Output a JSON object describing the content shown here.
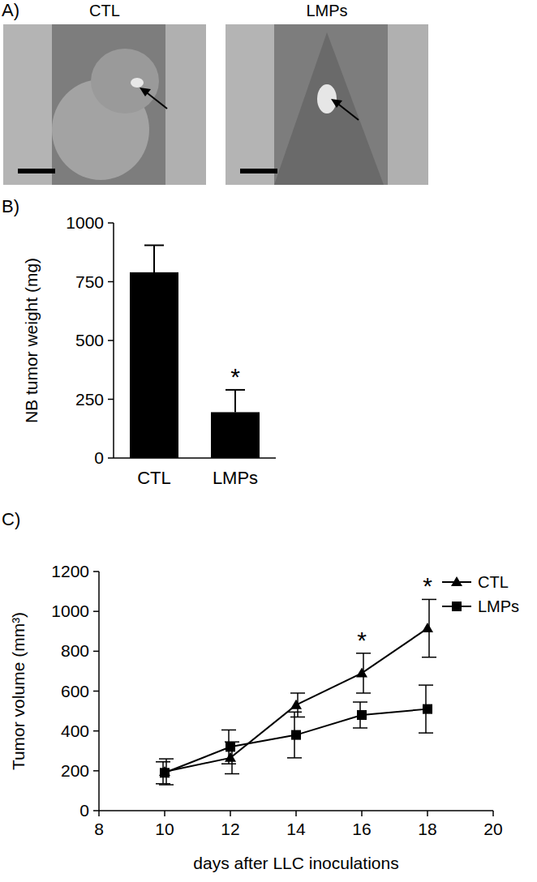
{
  "panel_a": {
    "label": "A)",
    "images": [
      "CTL",
      "LMPs"
    ]
  },
  "chart_data": [
    {
      "type": "bar",
      "title": "B)",
      "y_label": "NB tumor weight (mg)",
      "categories": [
        "CTL",
        "LMPs"
      ],
      "values": [
        790,
        195
      ],
      "errors": [
        115,
        95
      ],
      "color": "#000000",
      "ylim": [
        0,
        1000
      ],
      "yticks": [
        0,
        250,
        500,
        750,
        1000
      ],
      "grid": false,
      "annotations": [
        {
          "text": "*",
          "x": "LMPs"
        }
      ]
    },
    {
      "type": "line",
      "title": "C)",
      "x_label": "days after LLC inoculations",
      "y_label": "Tumor volume (mm³)",
      "x": [
        10,
        12,
        14,
        16,
        18
      ],
      "series": [
        {
          "name": "CTL",
          "color": "#000000",
          "marker": "triangle",
          "line_style": "solid",
          "values": [
            195,
            265,
            530,
            690,
            915
          ],
          "errors": [
            65,
            80,
            60,
            100,
            145
          ]
        },
        {
          "name": "LMPs",
          "color": "#000000",
          "marker": "square",
          "line_style": "solid",
          "values": [
            190,
            320,
            380,
            480,
            510
          ],
          "errors": [
            55,
            85,
            115,
            65,
            120
          ]
        }
      ],
      "xlim": [
        8,
        20
      ],
      "xticks": [
        8,
        10,
        12,
        14,
        16,
        18,
        20
      ],
      "ylim": [
        0,
        1200
      ],
      "yticks": [
        0,
        200,
        400,
        600,
        800,
        1000,
        1200
      ],
      "grid": false,
      "legend": "upper right",
      "annotations": [
        {
          "text": "*",
          "x": 16
        },
        {
          "text": "*",
          "x": 18
        }
      ]
    }
  ]
}
